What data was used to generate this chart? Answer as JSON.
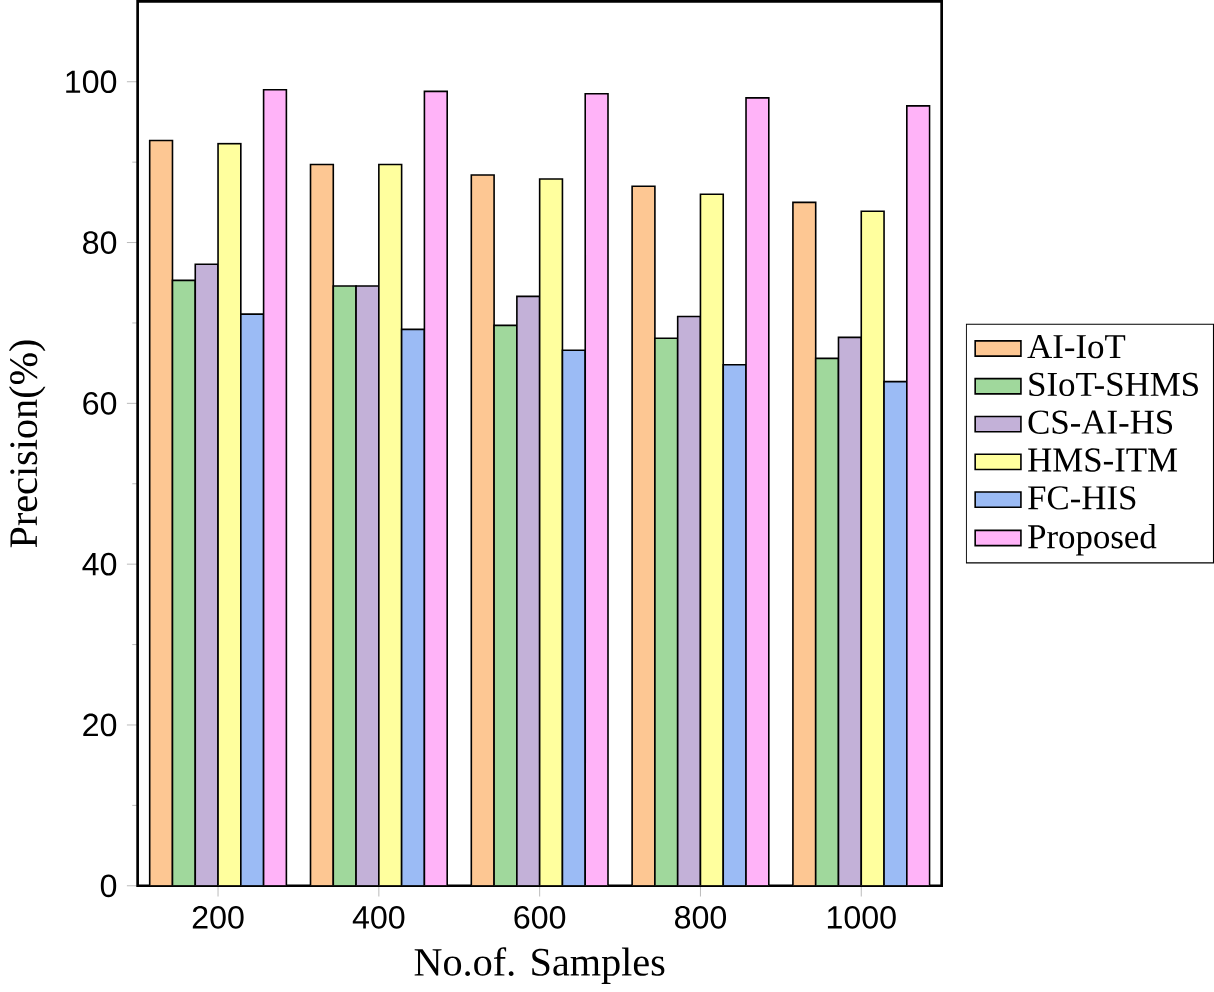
{
  "chart_data": {
    "type": "bar",
    "xlabel": "No.of. Samples",
    "ylabel": "Precision(%)",
    "categories": [
      "200",
      "400",
      "600",
      "800",
      "1000"
    ],
    "ylim": [
      0,
      110
    ],
    "yticks": [
      0,
      20,
      40,
      60,
      80,
      100
    ],
    "grid": false,
    "legend": "right",
    "series": [
      {
        "name": "AI-IoT",
        "color": "#fdc793",
        "values": [
          92.7,
          89.7,
          88.4,
          87.0,
          85.0
        ]
      },
      {
        "name": "SIoT-SHMS",
        "color": "#a0d89c",
        "values": [
          75.3,
          74.6,
          69.7,
          68.1,
          65.6
        ]
      },
      {
        "name": "CS-AI-HS",
        "color": "#c3b1d8",
        "values": [
          77.3,
          74.6,
          73.3,
          70.8,
          68.2
        ]
      },
      {
        "name": "HMS-ITM",
        "color": "#ffff9e",
        "values": [
          92.3,
          89.7,
          87.9,
          86.0,
          83.9
        ]
      },
      {
        "name": "FC-HIS",
        "color": "#9bbbf5",
        "values": [
          71.1,
          69.2,
          66.6,
          64.8,
          62.7
        ]
      },
      {
        "name": "Proposed",
        "color": "#ffb3f8",
        "values": [
          99.0,
          98.8,
          98.5,
          98.0,
          97.0
        ]
      }
    ]
  }
}
